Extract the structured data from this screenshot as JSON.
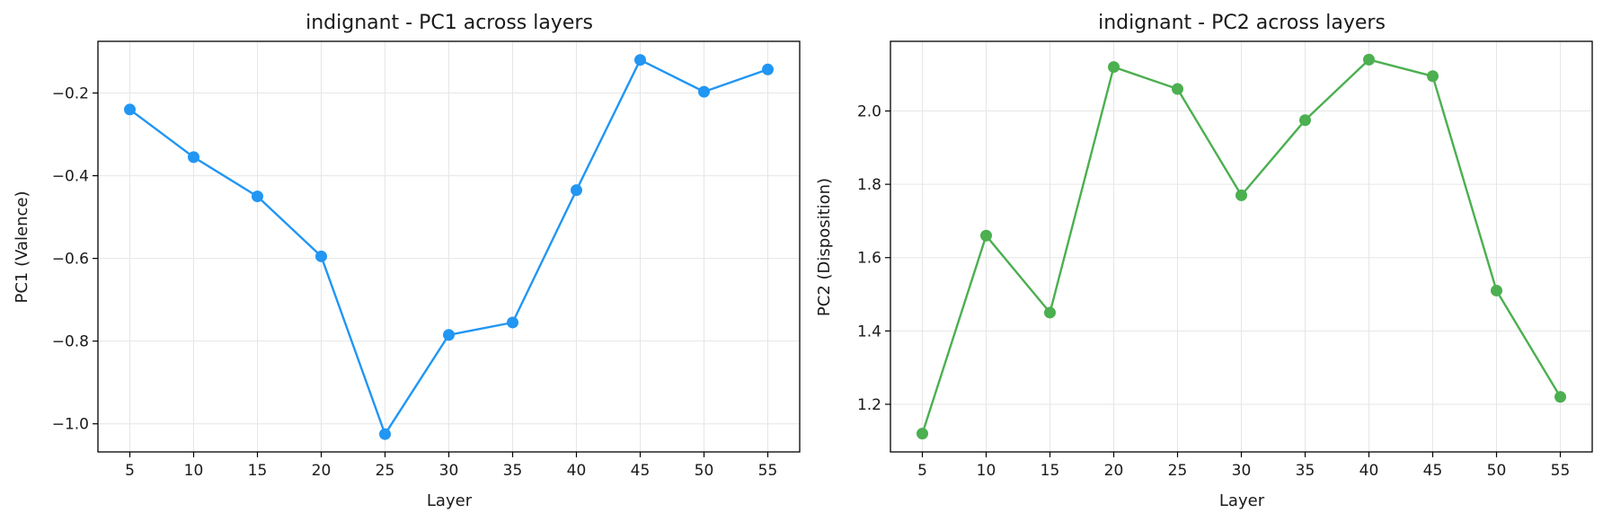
{
  "chart_data": [
    {
      "type": "line",
      "title": "indignant - PC1 across layers",
      "xlabel": "Layer",
      "ylabel": "PC1 (Valence)",
      "x": [
        5,
        10,
        15,
        20,
        25,
        30,
        35,
        40,
        45,
        50,
        55
      ],
      "xticks": [
        "5",
        "10",
        "15",
        "20",
        "25",
        "30",
        "35",
        "40",
        "45",
        "50",
        "55"
      ],
      "y": [
        -0.24,
        -0.355,
        -0.45,
        -0.595,
        -1.025,
        -0.785,
        -0.755,
        -0.435,
        -0.12,
        -0.197,
        -0.143
      ],
      "yticks": [
        "−0.2",
        "−0.4",
        "−0.6",
        "−0.8",
        "−1.0"
      ],
      "ytick_values": [
        -0.2,
        -0.4,
        -0.6,
        -0.8,
        -1.0
      ],
      "xlim": [
        2.5,
        57.5
      ],
      "ylim": [
        -1.068,
        -0.075
      ],
      "grid": true,
      "color": "#2196F3"
    },
    {
      "type": "line",
      "title": "indignant - PC2 across layers",
      "xlabel": "Layer",
      "ylabel": "PC2 (Disposition)",
      "x": [
        5,
        10,
        15,
        20,
        25,
        30,
        35,
        40,
        45,
        50,
        55
      ],
      "xticks": [
        "5",
        "10",
        "15",
        "20",
        "25",
        "30",
        "35",
        "40",
        "45",
        "50",
        "55"
      ],
      "y": [
        1.12,
        1.66,
        1.45,
        2.12,
        2.06,
        1.77,
        1.975,
        2.14,
        2.095,
        1.51,
        1.22
      ],
      "yticks": [
        "1.2",
        "1.4",
        "1.6",
        "1.8",
        "2.0"
      ],
      "ytick_values": [
        1.2,
        1.4,
        1.6,
        1.8,
        2.0
      ],
      "xlim": [
        2.5,
        57.5
      ],
      "ylim": [
        1.07,
        2.19
      ],
      "grid": true,
      "color": "#4CAF50"
    }
  ]
}
